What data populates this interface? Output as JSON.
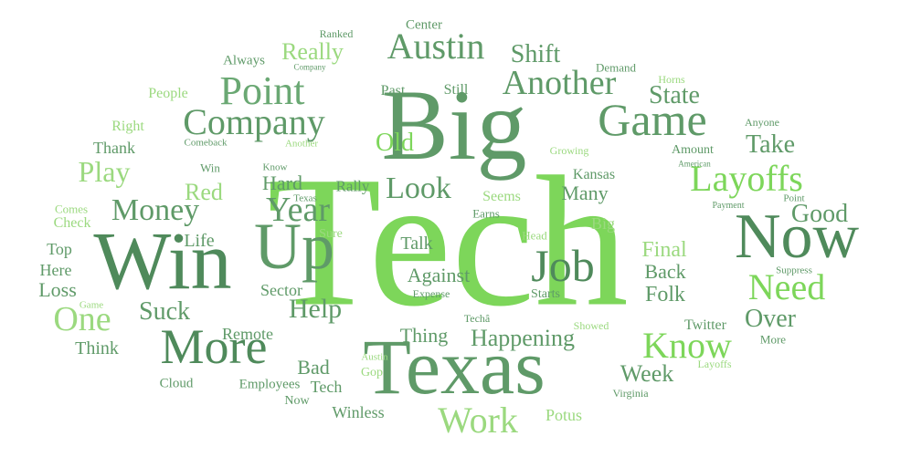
{
  "words": [
    "Tech",
    "Big",
    "Texas",
    "Win",
    "Up",
    "Now",
    "Job",
    "Game",
    "Company",
    "Point",
    "Austin",
    "Another",
    "More",
    "Layoffs",
    "Know",
    "Need",
    "Work",
    "Look",
    "Year",
    "Money",
    "Play",
    "One",
    "Suck",
    "Help",
    "Over",
    "Good",
    "Take",
    "State",
    "Shift",
    "Really",
    "Old",
    "Happening",
    "Against",
    "Talk",
    "Week",
    "Red",
    "Hard",
    "Final",
    "Back",
    "Folk",
    "Many",
    "Kansas",
    "Seems",
    "Rally",
    "Bad",
    "Thing",
    "Remote",
    "Sector",
    "Life",
    "Loss",
    "Think",
    "Here",
    "Top",
    "Check",
    "Thank",
    "Right",
    "People",
    "Always",
    "Ranked",
    "Center",
    "Still",
    "Past",
    "Demand",
    "Horns",
    "Anyone",
    "Amount",
    "Potus",
    "Winless",
    "Employees",
    "Cloud",
    "Tech",
    "Gop",
    "Austin",
    "Virginia",
    "Twitter",
    "More",
    "Layoffs",
    "Showed",
    "Starts",
    "Expense",
    "Techâ",
    "Head",
    "Big",
    "Sure",
    "Earns",
    "Texas",
    "Know",
    "Win",
    "Comeback",
    "Another",
    "Growing",
    "Company",
    "American",
    "Payment",
    "Point",
    "Suppress",
    "Game",
    "Comes",
    "Now"
  ]
}
